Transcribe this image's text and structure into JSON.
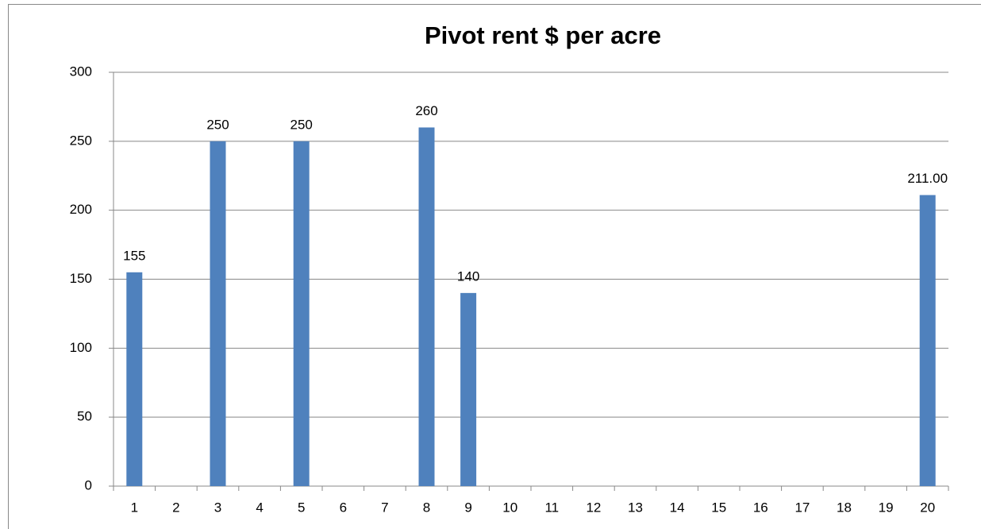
{
  "chart_data": {
    "type": "bar",
    "title": "Pivot rent $ per acre",
    "categories": [
      "1",
      "2",
      "3",
      "4",
      "5",
      "6",
      "7",
      "8",
      "9",
      "10",
      "11",
      "12",
      "13",
      "14",
      "15",
      "16",
      "17",
      "18",
      "19",
      "20"
    ],
    "values": [
      155,
      null,
      250,
      null,
      250,
      null,
      null,
      260,
      140,
      null,
      null,
      null,
      null,
      null,
      null,
      null,
      null,
      null,
      null,
      211
    ],
    "value_labels": [
      "155",
      null,
      "250",
      null,
      "250",
      null,
      null,
      "260",
      "140",
      null,
      null,
      null,
      null,
      null,
      null,
      null,
      null,
      null,
      null,
      "211.00"
    ],
    "color": "#4f81bd",
    "ylim": [
      0,
      300
    ],
    "yticks": [
      0,
      50,
      100,
      150,
      200,
      250,
      300
    ],
    "grid": true
  }
}
